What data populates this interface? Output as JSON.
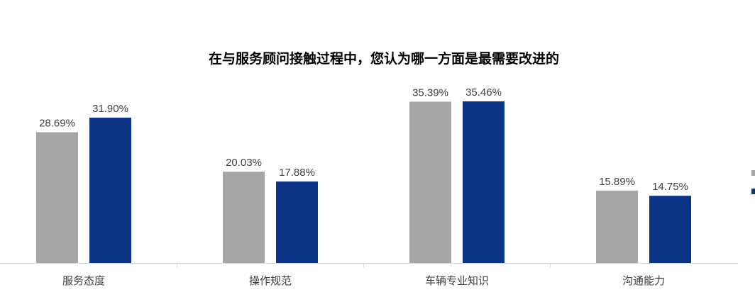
{
  "chart_data": {
    "type": "bar",
    "title": "在与服务顾问接触过程中，您认为哪一方面是最需要改进的",
    "categories": [
      "服务态度",
      "操作规范",
      "车辆专业知识",
      "沟通能力"
    ],
    "series": [
      {
        "values": [
          28.69,
          20.03,
          35.39,
          15.89
        ],
        "labels": [
          "28.69%",
          "20.03%",
          "35.39%",
          "15.89%"
        ],
        "color": "#a6a6a6"
      },
      {
        "values": [
          31.9,
          17.88,
          35.46,
          14.75
        ],
        "labels": [
          "31.90%",
          "17.88%",
          "35.46%",
          "14.75%"
        ],
        "color": "#0b3487"
      }
    ],
    "ylim": [
      0,
      40
    ],
    "grid": false,
    "legend": "right (cropped)",
    "axis_color": "#d9d9d9"
  }
}
